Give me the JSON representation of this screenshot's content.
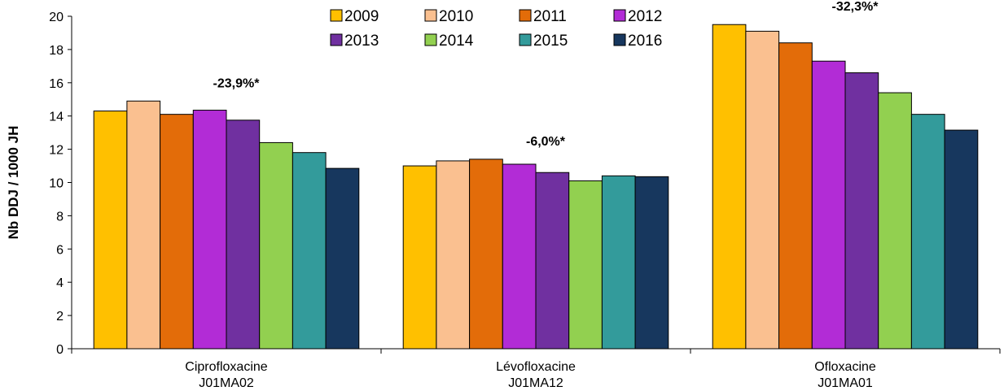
{
  "chart_data": {
    "type": "bar",
    "title": "",
    "ylabel": "Nb DDJ / 1000 JH",
    "ylim": [
      0,
      20
    ],
    "yticks": [
      "0",
      "2",
      "4",
      "6",
      "8",
      "10",
      "12",
      "14",
      "16",
      "18",
      "20"
    ],
    "grid": false,
    "legend_position": "top-center",
    "categories": [
      {
        "line1": "Ciprofloxacine",
        "line2": "J01MA02",
        "annotation": "-23,9%*"
      },
      {
        "line1": "Lévofloxacine",
        "line2": "J01MA12",
        "annotation": "-6,0%*"
      },
      {
        "line1": "Ofloxacine",
        "line2": "J01MA01",
        "annotation": "-32,3%*"
      }
    ],
    "series": [
      {
        "name": "2009",
        "color": "#FFC000",
        "values": [
          14.3,
          11.0,
          19.5
        ]
      },
      {
        "name": "2010",
        "color": "#FAC090",
        "values": [
          14.9,
          11.3,
          19.1
        ]
      },
      {
        "name": "2011",
        "color": "#E36C09",
        "values": [
          14.1,
          11.4,
          18.4
        ]
      },
      {
        "name": "2012",
        "color": "#B22CD6",
        "values": [
          14.35,
          11.1,
          17.3
        ]
      },
      {
        "name": "2013",
        "color": "#7030A0",
        "values": [
          13.75,
          10.6,
          16.6
        ]
      },
      {
        "name": "2014",
        "color": "#92D050",
        "values": [
          12.4,
          10.1,
          15.4
        ]
      },
      {
        "name": "2015",
        "color": "#339B9B",
        "values": [
          11.8,
          10.4,
          14.1
        ]
      },
      {
        "name": "2016",
        "color": "#17375E",
        "values": [
          10.85,
          10.35,
          13.15
        ]
      }
    ]
  }
}
